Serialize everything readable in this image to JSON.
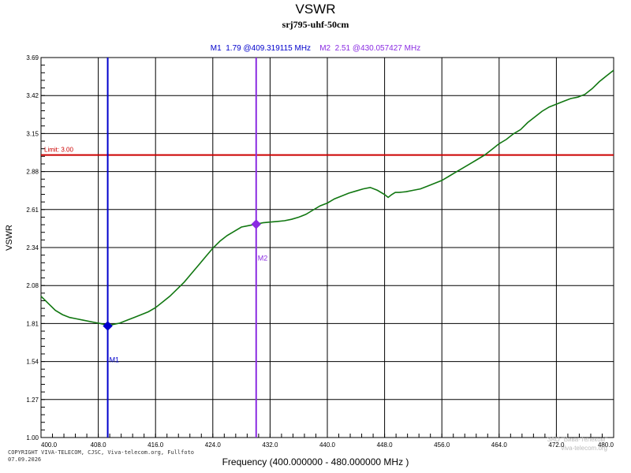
{
  "chart_data": {
    "type": "line",
    "title": "VSWR",
    "subtitle": "srj795-uhf-50cm",
    "xlabel": "Frequency (400.000000 - 480.000000 MHz )",
    "ylabel": "VSWR",
    "xlim": [
      400,
      480
    ],
    "ylim": [
      1.0,
      3.69
    ],
    "x_ticks": [
      "400.0",
      "408.0",
      "416.0",
      "424.0",
      "432.0",
      "440.0",
      "448.0",
      "456.0",
      "464.0",
      "472.0",
      "480.0"
    ],
    "y_ticks": [
      "1.00",
      "1.27",
      "1.54",
      "1.81",
      "2.08",
      "2.34",
      "2.61",
      "2.88",
      "3.15",
      "3.42",
      "3.69"
    ],
    "grid": true,
    "limit": {
      "label": "Limit: 3.00",
      "value": 3.0,
      "color": "#cc0000"
    },
    "markers": [
      {
        "id": "M1",
        "label": "M1",
        "readout": "M1  1.79 @409.319115 MHz",
        "x": 409.319115,
        "y": 1.79,
        "color": "#0000cc"
      },
      {
        "id": "M2",
        "label": "M2",
        "readout": "M2  2.51 @430.057427 MHz",
        "x": 430.057427,
        "y": 2.51,
        "color": "#8a2be2"
      }
    ],
    "series": [
      {
        "color": "#117711",
        "x": [
          400,
          401,
          402,
          403,
          404,
          405,
          406,
          407,
          408,
          409,
          409.32,
          410,
          411,
          412,
          413,
          414,
          415,
          416,
          417,
          418,
          419,
          420,
          421,
          422,
          423,
          424,
          425,
          426,
          427,
          428,
          429,
          430.06,
          431,
          432,
          433,
          434,
          435,
          436,
          437,
          438,
          439,
          440,
          441,
          442,
          443,
          444,
          445,
          446,
          447,
          448,
          448.5,
          449,
          449.5,
          450,
          451,
          452,
          453,
          454,
          455,
          456,
          457,
          458,
          459,
          460,
          461,
          462,
          463,
          464,
          465,
          466,
          467,
          468,
          469,
          470,
          471,
          472,
          473,
          474,
          475,
          476,
          477,
          478,
          479,
          480
        ],
        "y": [
          2.0,
          1.95,
          1.9,
          1.87,
          1.85,
          1.84,
          1.83,
          1.82,
          1.81,
          1.8,
          1.79,
          1.8,
          1.81,
          1.83,
          1.85,
          1.87,
          1.89,
          1.92,
          1.96,
          2.0,
          2.05,
          2.1,
          2.16,
          2.22,
          2.28,
          2.34,
          2.39,
          2.43,
          2.46,
          2.49,
          2.5,
          2.51,
          2.52,
          2.525,
          2.53,
          2.535,
          2.545,
          2.56,
          2.58,
          2.61,
          2.64,
          2.66,
          2.69,
          2.71,
          2.73,
          2.745,
          2.76,
          2.77,
          2.75,
          2.72,
          2.7,
          2.72,
          2.735,
          2.735,
          2.74,
          2.75,
          2.76,
          2.78,
          2.8,
          2.82,
          2.85,
          2.88,
          2.91,
          2.94,
          2.97,
          3.0,
          3.04,
          3.08,
          3.11,
          3.15,
          3.18,
          3.23,
          3.27,
          3.31,
          3.34,
          3.36,
          3.38,
          3.4,
          3.41,
          3.43,
          3.47,
          3.52,
          3.56,
          3.6
        ]
      }
    ]
  },
  "footer": {
    "copyright_line1": "COPYRIGHT VIVA-TELECOM, CJSC, Viva-telecom.org, Fullfoto",
    "copyright_line2": "07.09.2026",
    "watermark_line1": "ЗАО \"Вива-Телеком\"",
    "watermark_line2": "viva-telecom.org"
  }
}
